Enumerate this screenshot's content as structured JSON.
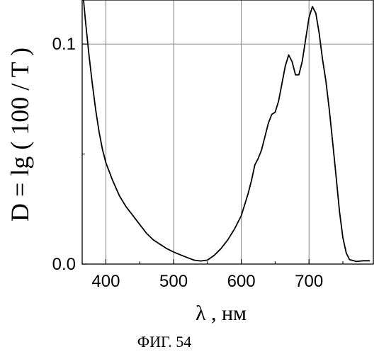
{
  "chart_data": {
    "type": "line",
    "title": "",
    "xlabel": "λ , нм",
    "ylabel": "D = lg ( 100 / T )",
    "caption": "ФИГ. 54",
    "xlim": [
      365,
      795
    ],
    "ylim": [
      0,
      0.12
    ],
    "grid": true,
    "x_ticks": [
      400,
      500,
      600,
      700
    ],
    "y_ticks": [
      0.0,
      0.1
    ],
    "x_tick_labels": [
      "400",
      "500",
      "600",
      "700"
    ],
    "y_tick_labels": [
      "0.0",
      "0.1"
    ],
    "series": [
      {
        "values": [
          [
            367,
            0.12
          ],
          [
            370,
            0.11
          ],
          [
            375,
            0.095
          ],
          [
            380,
            0.082
          ],
          [
            385,
            0.07
          ],
          [
            390,
            0.06
          ],
          [
            395,
            0.052
          ],
          [
            400,
            0.046
          ],
          [
            410,
            0.038
          ],
          [
            420,
            0.031
          ],
          [
            430,
            0.026
          ],
          [
            440,
            0.022
          ],
          [
            450,
            0.018
          ],
          [
            460,
            0.014
          ],
          [
            470,
            0.011
          ],
          [
            480,
            0.009
          ],
          [
            490,
            0.007
          ],
          [
            500,
            0.0055
          ],
          [
            510,
            0.0042
          ],
          [
            520,
            0.003
          ],
          [
            530,
            0.0018
          ],
          [
            540,
            0.0014
          ],
          [
            550,
            0.0018
          ],
          [
            560,
            0.004
          ],
          [
            570,
            0.007
          ],
          [
            580,
            0.011
          ],
          [
            590,
            0.016
          ],
          [
            600,
            0.022
          ],
          [
            605,
            0.027
          ],
          [
            610,
            0.032
          ],
          [
            615,
            0.038
          ],
          [
            620,
            0.045
          ],
          [
            625,
            0.048
          ],
          [
            630,
            0.052
          ],
          [
            635,
            0.058
          ],
          [
            640,
            0.064
          ],
          [
            645,
            0.068
          ],
          [
            650,
            0.069
          ],
          [
            655,
            0.074
          ],
          [
            660,
            0.082
          ],
          [
            665,
            0.09
          ],
          [
            670,
            0.095
          ],
          [
            675,
            0.092
          ],
          [
            680,
            0.086
          ],
          [
            685,
            0.086
          ],
          [
            690,
            0.092
          ],
          [
            695,
            0.102
          ],
          [
            700,
            0.112
          ],
          [
            705,
            0.117
          ],
          [
            710,
            0.114
          ],
          [
            715,
            0.105
          ],
          [
            720,
            0.093
          ],
          [
            725,
            0.083
          ],
          [
            730,
            0.07
          ],
          [
            735,
            0.055
          ],
          [
            740,
            0.04
          ],
          [
            745,
            0.024
          ],
          [
            750,
            0.012
          ],
          [
            755,
            0.005
          ],
          [
            760,
            0.002
          ],
          [
            770,
            0.0012
          ],
          [
            780,
            0.0015
          ],
          [
            790,
            0.0015
          ]
        ]
      }
    ]
  }
}
